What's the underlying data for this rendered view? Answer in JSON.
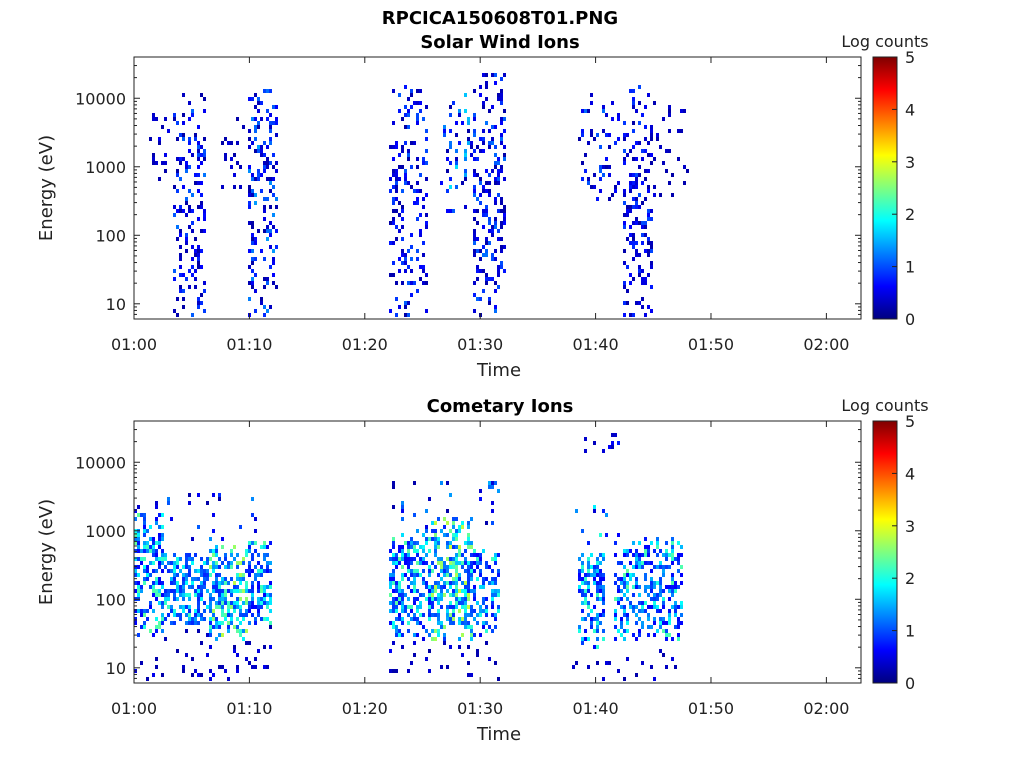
{
  "figure": {
    "title": "RPCICA150608T01.PNG"
  },
  "colormap": {
    "name": "jet",
    "stops": [
      "#00007f",
      "#0000ff",
      "#007fff",
      "#00ffff",
      "#7fff7f",
      "#ffff00",
      "#ff7f00",
      "#ff0000",
      "#7f0000"
    ]
  },
  "chart_data": [
    {
      "type": "heatmap",
      "title": "Solar Wind Ions",
      "xlabel": "Time",
      "ylabel": "Energy (eV)",
      "y_scale": "log",
      "x_range": [
        "01:00",
        "02:03"
      ],
      "y_range": [
        6,
        40000
      ],
      "x_ticks": [
        "01:00",
        "01:10",
        "01:20",
        "01:30",
        "01:40",
        "01:50",
        "02:00"
      ],
      "y_ticks": [
        "10",
        "100",
        "1000",
        "10000"
      ],
      "colorbar": {
        "label": "Log counts",
        "range": [
          0,
          5
        ],
        "ticks": [
          "0",
          "1",
          "2",
          "3",
          "4",
          "5"
        ]
      },
      "grid": false,
      "clusters": [
        {
          "t0": 1.0,
          "t1": 3.0,
          "e0": 600,
          "e1": 10000,
          "density": 0.18,
          "level": [
            0.2,
            0.6
          ]
        },
        {
          "t0": 3.5,
          "t1": 6.2,
          "e0": 6,
          "e1": 12000,
          "density": 0.28,
          "level": [
            0.2,
            1.2
          ]
        },
        {
          "t0": 7.5,
          "t1": 9.5,
          "e0": 400,
          "e1": 6000,
          "density": 0.14,
          "level": [
            0.2,
            0.5
          ]
        },
        {
          "t0": 9.8,
          "t1": 12.5,
          "e0": 6,
          "e1": 14000,
          "density": 0.3,
          "level": [
            0.2,
            1.4
          ]
        },
        {
          "t0": 22.0,
          "t1": 25.5,
          "e0": 6,
          "e1": 15000,
          "density": 0.24,
          "level": [
            0.2,
            1.1
          ]
        },
        {
          "t0": 26.5,
          "t1": 29.5,
          "e0": 200,
          "e1": 12000,
          "density": 0.18,
          "level": [
            0.2,
            1.8
          ]
        },
        {
          "t0": 29.5,
          "t1": 32.2,
          "e0": 6,
          "e1": 24000,
          "density": 0.3,
          "level": [
            0.2,
            1.2
          ]
        },
        {
          "t0": 38.5,
          "t1": 42.0,
          "e0": 300,
          "e1": 12000,
          "density": 0.14,
          "level": [
            0.2,
            1.2
          ]
        },
        {
          "t0": 42.5,
          "t1": 45.0,
          "e0": 6,
          "e1": 18000,
          "density": 0.3,
          "level": [
            0.2,
            1.0
          ]
        },
        {
          "t0": 45.0,
          "t1": 48.0,
          "e0": 300,
          "e1": 9000,
          "density": 0.12,
          "level": [
            0.2,
            0.5
          ]
        }
      ]
    },
    {
      "type": "heatmap",
      "title": "Cometary Ions",
      "xlabel": "Time",
      "ylabel": "Energy (eV)",
      "y_scale": "log",
      "x_range": [
        "01:00",
        "02:03"
      ],
      "y_range": [
        6,
        40000
      ],
      "x_ticks": [
        "01:00",
        "01:10",
        "01:20",
        "01:30",
        "01:40",
        "01:50",
        "02:00"
      ],
      "y_ticks": [
        "10",
        "100",
        "1000",
        "10000"
      ],
      "colorbar": {
        "label": "Log counts",
        "range": [
          0,
          5
        ],
        "ticks": [
          "0",
          "1",
          "2",
          "3",
          "4",
          "5"
        ]
      },
      "grid": false,
      "clusters": [
        {
          "t0": 0.0,
          "t1": 2.5,
          "e0": 30,
          "e1": 1800,
          "density": 0.55,
          "level": [
            0.6,
            2.4
          ]
        },
        {
          "t0": 2.5,
          "t1": 6.5,
          "e0": 40,
          "e1": 500,
          "density": 0.6,
          "level": [
            0.8,
            2.2
          ]
        },
        {
          "t0": 6.5,
          "t1": 9.8,
          "e0": 25,
          "e1": 600,
          "density": 0.65,
          "level": [
            0.8,
            2.8
          ]
        },
        {
          "t0": 9.8,
          "t1": 12.0,
          "e0": 40,
          "e1": 700,
          "density": 0.6,
          "level": [
            0.6,
            2.4
          ]
        },
        {
          "t0": 0.0,
          "t1": 12.0,
          "e0": 6,
          "e1": 40,
          "density": 0.08,
          "level": [
            0.2,
            0.6
          ]
        },
        {
          "t0": 0.0,
          "t1": 12.0,
          "e0": 700,
          "e1": 4000,
          "density": 0.06,
          "level": [
            0.2,
            1.4
          ]
        },
        {
          "t0": 22.0,
          "t1": 25.8,
          "e0": 30,
          "e1": 1000,
          "density": 0.55,
          "level": [
            0.6,
            2.4
          ]
        },
        {
          "t0": 25.8,
          "t1": 29.5,
          "e0": 25,
          "e1": 1500,
          "density": 0.6,
          "level": [
            0.8,
            2.9
          ]
        },
        {
          "t0": 29.5,
          "t1": 31.8,
          "e0": 30,
          "e1": 600,
          "density": 0.5,
          "level": [
            0.6,
            2.2
          ]
        },
        {
          "t0": 22.0,
          "t1": 32.0,
          "e0": 6,
          "e1": 30,
          "density": 0.06,
          "level": [
            0.2,
            0.6
          ]
        },
        {
          "t0": 22.0,
          "t1": 32.0,
          "e0": 1000,
          "e1": 5000,
          "density": 0.06,
          "level": [
            0.2,
            1.5
          ]
        },
        {
          "t0": 38.5,
          "t1": 40.8,
          "e0": 20,
          "e1": 500,
          "density": 0.5,
          "level": [
            0.6,
            2.2
          ]
        },
        {
          "t0": 41.5,
          "t1": 44.2,
          "e0": 25,
          "e1": 700,
          "density": 0.45,
          "level": [
            0.6,
            2.4
          ]
        },
        {
          "t0": 44.2,
          "t1": 47.5,
          "e0": 25,
          "e1": 800,
          "density": 0.5,
          "level": [
            0.6,
            2.3
          ]
        },
        {
          "t0": 38.0,
          "t1": 42.5,
          "e0": 500,
          "e1": 2500,
          "density": 0.1,
          "level": [
            0.4,
            2.4
          ]
        },
        {
          "t0": 38.0,
          "t1": 42.0,
          "e0": 12000,
          "e1": 25000,
          "density": 0.06,
          "level": [
            0.3,
            0.8
          ]
        },
        {
          "t0": 38.0,
          "t1": 47.5,
          "e0": 6,
          "e1": 20,
          "density": 0.05,
          "level": [
            0.2,
            0.5
          ]
        }
      ]
    }
  ]
}
